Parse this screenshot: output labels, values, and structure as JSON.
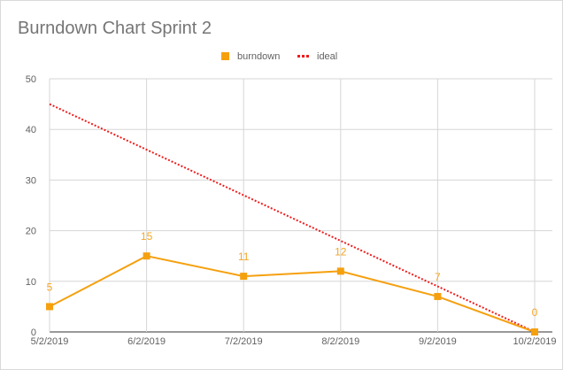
{
  "chart_data": {
    "type": "line",
    "title": "Burndown Chart Sprint 2",
    "x": [
      "5/2/2019",
      "6/2/2019",
      "7/2/2019",
      "8/2/2019",
      "9/2/2019",
      "10/2/2019"
    ],
    "ylim": [
      0,
      50
    ],
    "yticks": [
      0,
      10,
      20,
      30,
      40,
      50
    ],
    "grid": true,
    "legend_position": "top",
    "series": [
      {
        "name": "burndown",
        "values": [
          5,
          15,
          11,
          12,
          7,
          0
        ],
        "color": "#f5a00f",
        "style": "solid",
        "marker": "square",
        "labels": [
          "5",
          "15",
          "11",
          "12",
          "7",
          "0"
        ]
      },
      {
        "name": "ideal",
        "values": [
          45,
          36,
          27,
          18,
          9,
          0
        ],
        "color": "#ee1c1c",
        "style": "dotted"
      }
    ]
  }
}
